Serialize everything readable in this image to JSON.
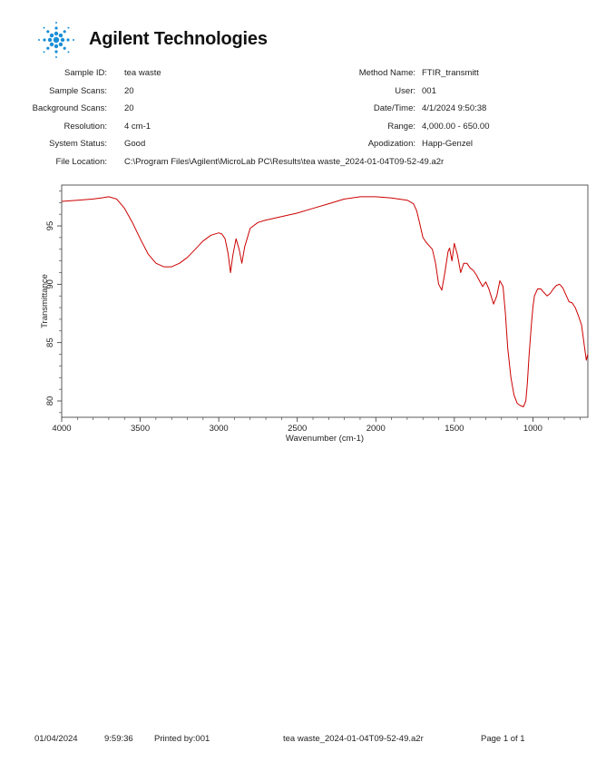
{
  "logo": {
    "text": "Agilent Technologies"
  },
  "meta_left": [
    {
      "label": "Sample ID:",
      "value": "tea waste"
    },
    {
      "label": "Sample Scans:",
      "value": "20"
    },
    {
      "label": "Background Scans:",
      "value": "20"
    },
    {
      "label": "Resolution:",
      "value": "4 cm-1"
    },
    {
      "label": "System Status:",
      "value": "Good"
    },
    {
      "label": "File Location:",
      "value": "C:\\Program Files\\Agilent\\MicroLab PC\\Results\\tea waste_2024-01-04T09-52-49.a2r"
    }
  ],
  "meta_right": [
    {
      "label": "Method Name:",
      "value": "FTIR_transmitt"
    },
    {
      "label": "User:",
      "value": "001"
    },
    {
      "label": "Date/Time:",
      "value": "4/1/2024   9:50:38"
    },
    {
      "label": "Range:",
      "value": "4,000.00 - 650.00"
    },
    {
      "label": "Apodization:",
      "value": "Happ-Genzel"
    }
  ],
  "footer": {
    "date": "01/04/2024",
    "time": "9:59:36",
    "printed_by": "Printed by:001",
    "file": "tea waste_2024-01-04T09-52-49.a2r",
    "page": "Page 1 of 1"
  },
  "chart_data": {
    "type": "line",
    "xlabel": "Wavenumber (cm-1)",
    "ylabel": "Transmittance",
    "xlim": [
      4000,
      650
    ],
    "ylim": [
      78.6,
      98.5
    ],
    "x_ticks": [
      4000,
      3500,
      3000,
      2500,
      2000,
      1500,
      1000
    ],
    "y_ticks": [
      80,
      85,
      90,
      95
    ],
    "grid": false,
    "line_color": "#cc0000",
    "series": [
      {
        "x": [
          4000,
          3900,
          3800,
          3750,
          3700,
          3650,
          3600,
          3550,
          3500,
          3450,
          3400,
          3350,
          3300,
          3250,
          3200,
          3150,
          3100,
          3050,
          3000,
          2980,
          2960,
          2940,
          2925,
          2910,
          2890,
          2870,
          2853,
          2835,
          2800,
          2750,
          2700,
          2600,
          2500,
          2400,
          2300,
          2200,
          2100,
          2000,
          1900,
          1800,
          1760,
          1740,
          1720,
          1700,
          1680,
          1660,
          1640,
          1620,
          1600,
          1580,
          1560,
          1540,
          1530,
          1515,
          1500,
          1480,
          1460,
          1440,
          1420,
          1400,
          1380,
          1360,
          1340,
          1320,
          1300,
          1280,
          1250,
          1230,
          1210,
          1190,
          1175,
          1160,
          1140,
          1120,
          1100,
          1080,
          1060,
          1045,
          1035,
          1025,
          1010,
          1000,
          990,
          970,
          950,
          930,
          910,
          890,
          870,
          850,
          830,
          810,
          790,
          770,
          750,
          730,
          710,
          690,
          680,
          670,
          660,
          650
        ],
        "y": [
          97.1,
          97.2,
          97.3,
          97.4,
          97.5,
          97.3,
          96.5,
          95.3,
          93.9,
          92.6,
          91.8,
          91.5,
          91.5,
          91.8,
          92.3,
          93.0,
          93.7,
          94.2,
          94.4,
          94.3,
          93.9,
          92.6,
          91.0,
          92.5,
          93.9,
          93.0,
          91.8,
          93.2,
          94.8,
          95.3,
          95.5,
          95.8,
          96.1,
          96.5,
          96.9,
          97.3,
          97.5,
          97.5,
          97.4,
          97.2,
          96.9,
          96.3,
          95.2,
          94.0,
          93.6,
          93.3,
          93.0,
          91.8,
          90.0,
          89.5,
          91.0,
          92.8,
          93.1,
          92.0,
          93.5,
          92.5,
          91.0,
          91.8,
          91.8,
          91.4,
          91.2,
          90.8,
          90.3,
          89.8,
          90.2,
          89.6,
          88.3,
          89.0,
          90.3,
          89.8,
          87.5,
          84.5,
          82.0,
          80.5,
          79.8,
          79.6,
          79.5,
          80.0,
          81.5,
          83.8,
          86.5,
          88.0,
          89.0,
          89.6,
          89.6,
          89.3,
          89.0,
          89.2,
          89.6,
          89.9,
          90.0,
          89.7,
          89.1,
          88.5,
          88.4,
          88.0,
          87.3,
          86.5,
          85.5,
          84.5,
          83.5,
          84.0
        ]
      }
    ]
  }
}
